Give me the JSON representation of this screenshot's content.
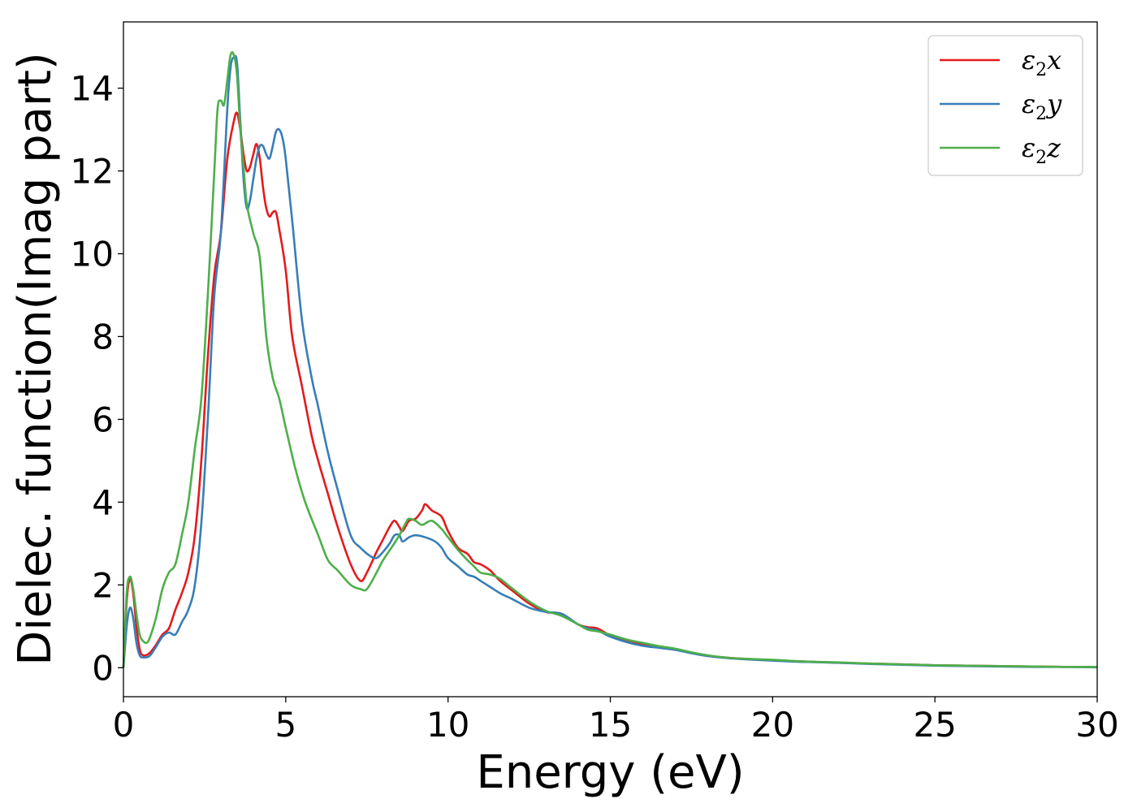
{
  "chart_data": {
    "type": "line",
    "title": "",
    "xlabel": "Energy (eV)",
    "ylabel": "Dielec. function(Imag part)",
    "xlim": [
      0,
      30
    ],
    "ylim": [
      -0.7,
      15.6
    ],
    "xticks": [
      0,
      5,
      10,
      15,
      20,
      25,
      30
    ],
    "yticks": [
      0,
      2,
      4,
      6,
      8,
      10,
      12,
      14
    ],
    "grid": false,
    "legend_position": "top-right",
    "series": [
      {
        "name": "ε₂x",
        "legend_base": "ε",
        "legend_sub": "2",
        "legend_var": "x",
        "color": "#e41a1c",
        "x": [
          0,
          0.1,
          0.2,
          0.3,
          0.4,
          0.5,
          0.6,
          0.8,
          1.0,
          1.2,
          1.4,
          1.6,
          1.8,
          2.0,
          2.2,
          2.4,
          2.6,
          2.8,
          3.0,
          3.2,
          3.4,
          3.5,
          3.6,
          3.7,
          3.8,
          3.9,
          4.0,
          4.1,
          4.2,
          4.3,
          4.4,
          4.5,
          4.6,
          4.7,
          4.8,
          5.0,
          5.2,
          5.5,
          5.8,
          6.0,
          6.3,
          6.6,
          7.0,
          7.3,
          7.5,
          7.8,
          8.0,
          8.2,
          8.35,
          8.5,
          8.6,
          8.8,
          9.0,
          9.2,
          9.3,
          9.5,
          9.8,
          10.0,
          10.3,
          10.6,
          10.8,
          11.0,
          11.3,
          11.6,
          12.0,
          12.5,
          13.0,
          13.5,
          14.0,
          14.3,
          14.6,
          15.0,
          15.5,
          16.0,
          16.5,
          17.0,
          17.5,
          18.0,
          18.5,
          19.0,
          20.0,
          21.0,
          22.0,
          23.0,
          24.0,
          25.0,
          26.0,
          27.0,
          28.0,
          29.0,
          30.0
        ],
        "values": [
          0,
          1.6,
          2.15,
          1.8,
          1.0,
          0.45,
          0.3,
          0.35,
          0.55,
          0.8,
          0.95,
          1.4,
          1.8,
          2.3,
          3.2,
          5.0,
          7.5,
          9.5,
          10.5,
          12.3,
          13.2,
          13.4,
          13.0,
          12.4,
          12.0,
          12.1,
          12.4,
          12.65,
          12.3,
          11.6,
          11.1,
          10.9,
          11.0,
          11.0,
          10.6,
          9.6,
          8.0,
          6.8,
          5.6,
          5.0,
          4.2,
          3.4,
          2.5,
          2.1,
          2.3,
          2.8,
          3.1,
          3.4,
          3.55,
          3.4,
          3.3,
          3.55,
          3.6,
          3.8,
          3.95,
          3.8,
          3.65,
          3.3,
          2.9,
          2.75,
          2.55,
          2.5,
          2.35,
          2.1,
          1.85,
          1.55,
          1.35,
          1.3,
          1.05,
          0.98,
          0.95,
          0.78,
          0.65,
          0.56,
          0.5,
          0.45,
          0.36,
          0.29,
          0.25,
          0.22,
          0.18,
          0.15,
          0.12,
          0.1,
          0.08,
          0.06,
          0.05,
          0.04,
          0.03,
          0.02,
          0.02
        ]
      },
      {
        "name": "ε₂y",
        "legend_base": "ε",
        "legend_sub": "2",
        "legend_var": "y",
        "color": "#377eb8",
        "x": [
          0,
          0.1,
          0.2,
          0.3,
          0.4,
          0.5,
          0.6,
          0.8,
          1.0,
          1.2,
          1.4,
          1.6,
          1.8,
          2.0,
          2.2,
          2.4,
          2.6,
          2.8,
          3.0,
          3.2,
          3.3,
          3.4,
          3.5,
          3.6,
          3.7,
          3.8,
          3.9,
          4.0,
          4.1,
          4.2,
          4.3,
          4.4,
          4.5,
          4.6,
          4.7,
          4.8,
          4.9,
          5.0,
          5.2,
          5.5,
          5.8,
          6.0,
          6.3,
          6.6,
          7.0,
          7.3,
          7.6,
          7.8,
          8.0,
          8.2,
          8.35,
          8.5,
          8.6,
          8.8,
          9.0,
          9.3,
          9.6,
          9.8,
          10.0,
          10.3,
          10.6,
          10.8,
          11.0,
          11.3,
          11.6,
          12.0,
          12.5,
          13.0,
          13.5,
          14.0,
          14.3,
          14.6,
          15.0,
          15.5,
          16.0,
          16.5,
          17.0,
          17.5,
          18.0,
          18.5,
          19.0,
          20.0,
          21.0,
          22.0,
          23.0,
          24.0,
          25.0,
          26.0,
          27.0,
          28.0,
          29.0,
          30.0
        ],
        "values": [
          0,
          1.0,
          1.45,
          1.2,
          0.6,
          0.3,
          0.25,
          0.28,
          0.5,
          0.75,
          0.85,
          0.8,
          1.1,
          1.4,
          2.0,
          3.5,
          6.0,
          9.0,
          10.5,
          13.5,
          14.5,
          14.75,
          14.6,
          13.2,
          11.8,
          11.1,
          11.3,
          11.8,
          12.3,
          12.6,
          12.6,
          12.4,
          12.3,
          12.6,
          12.95,
          13.0,
          12.8,
          12.3,
          10.8,
          8.4,
          7.0,
          6.3,
          5.2,
          4.3,
          3.2,
          2.9,
          2.7,
          2.65,
          2.8,
          3.0,
          3.2,
          3.2,
          3.05,
          3.15,
          3.2,
          3.15,
          3.05,
          2.9,
          2.65,
          2.45,
          2.25,
          2.2,
          2.1,
          1.95,
          1.8,
          1.65,
          1.45,
          1.35,
          1.3,
          1.05,
          0.95,
          0.9,
          0.75,
          0.62,
          0.53,
          0.48,
          0.43,
          0.35,
          0.28,
          0.24,
          0.21,
          0.17,
          0.14,
          0.12,
          0.09,
          0.07,
          0.05,
          0.04,
          0.03,
          0.02,
          0.02,
          0.01
        ]
      },
      {
        "name": "ε₂z",
        "legend_base": "ε",
        "legend_sub": "2",
        "legend_var": "z",
        "color": "#4daf4a",
        "x": [
          0,
          0.1,
          0.2,
          0.3,
          0.4,
          0.5,
          0.6,
          0.7,
          0.8,
          1.0,
          1.2,
          1.4,
          1.6,
          1.8,
          2.0,
          2.2,
          2.4,
          2.6,
          2.8,
          2.9,
          3.0,
          3.1,
          3.2,
          3.3,
          3.4,
          3.5,
          3.6,
          3.7,
          3.8,
          4.0,
          4.2,
          4.4,
          4.6,
          4.8,
          5.0,
          5.3,
          5.6,
          6.0,
          6.3,
          6.6,
          7.0,
          7.3,
          7.5,
          7.8,
          8.0,
          8.3,
          8.5,
          8.7,
          8.8,
          9.0,
          9.2,
          9.5,
          9.8,
          10.0,
          10.3,
          10.6,
          10.8,
          11.0,
          11.3,
          11.6,
          12.0,
          12.5,
          13.0,
          13.5,
          14.0,
          14.3,
          14.6,
          15.0,
          15.5,
          16.0,
          16.5,
          17.0,
          17.5,
          18.0,
          18.5,
          19.0,
          20.0,
          21.0,
          22.0,
          23.0,
          24.0,
          25.0,
          26.0,
          27.0,
          28.0,
          29.0,
          30.0
        ],
        "values": [
          0,
          1.8,
          2.2,
          1.9,
          1.3,
          0.8,
          0.65,
          0.6,
          0.7,
          1.2,
          1.9,
          2.3,
          2.5,
          3.2,
          4.0,
          5.3,
          6.5,
          9.0,
          12.0,
          13.5,
          13.7,
          13.6,
          14.2,
          14.8,
          14.8,
          14.3,
          13.0,
          12.1,
          11.2,
          10.5,
          9.9,
          8.0,
          7.0,
          6.5,
          5.8,
          4.8,
          4.0,
          3.2,
          2.6,
          2.35,
          2.0,
          1.9,
          1.9,
          2.3,
          2.6,
          2.95,
          3.2,
          3.5,
          3.6,
          3.55,
          3.45,
          3.55,
          3.35,
          3.15,
          2.85,
          2.6,
          2.45,
          2.3,
          2.25,
          2.15,
          1.9,
          1.6,
          1.38,
          1.25,
          1.05,
          0.92,
          0.88,
          0.8,
          0.68,
          0.6,
          0.52,
          0.46,
          0.37,
          0.3,
          0.25,
          0.22,
          0.19,
          0.15,
          0.13,
          0.1,
          0.08,
          0.06,
          0.05,
          0.04,
          0.03,
          0.02,
          0.02
        ]
      }
    ]
  }
}
